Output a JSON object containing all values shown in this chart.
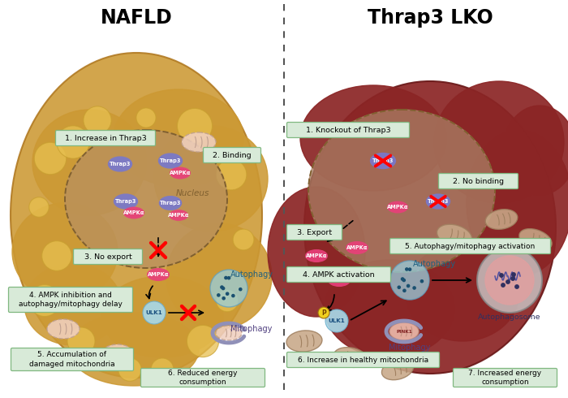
{
  "title_left": "NAFLD",
  "title_right": "Thrap3 LKO",
  "bg_color": "#ffffff",
  "left_liver_color": "#cc9933",
  "right_liver_color": "#8b2525",
  "nucleus_left_color": "#b89060",
  "nucleus_right_color": "#aa8065",
  "thrap3_color": "#7878cc",
  "ampka_color": "#e8407a",
  "ulk1_color": "#a8d8e8",
  "label_box_color": "#d8ead8",
  "label_box_edge": "#80b880",
  "fat_color": "#e8c050",
  "fat_edge": "#c8a030",
  "mito_healthy_color": "#c8a888",
  "mito_healthy_edge": "#a08060",
  "mito_damaged_color": "#f0d0c0",
  "mito_damaged_edge": "#c0a090",
  "autophagy_color": "#98d0e0",
  "mitophagy_arc_color": "#9090b8",
  "autophagosome_outer": "#c8c0c0",
  "autophagosome_inner": "#e0a0a0",
  "labels_left": [
    "1. Increase in Thrap3",
    "2. Binding",
    "3. No export",
    "4. AMPK inhibition and\nautophagy/mitophagy delay",
    "5. Accumulation of\ndamaged mitochondria",
    "6. Reduced energy\nconsumption"
  ],
  "labels_right": [
    "1. Knockout of Thrap3",
    "2. No binding",
    "3. Export",
    "4. AMPK activation",
    "5. Autophagy/mitophagy activation",
    "6. Increase in healthy mitochondria",
    "7. Increased energy\nconsumption"
  ],
  "nucleus_text": "Nucleus",
  "autophagy_text": "Autophagy",
  "mitophagy_text": "Mitophagy",
  "autophagosome_text": "Autophagosome"
}
